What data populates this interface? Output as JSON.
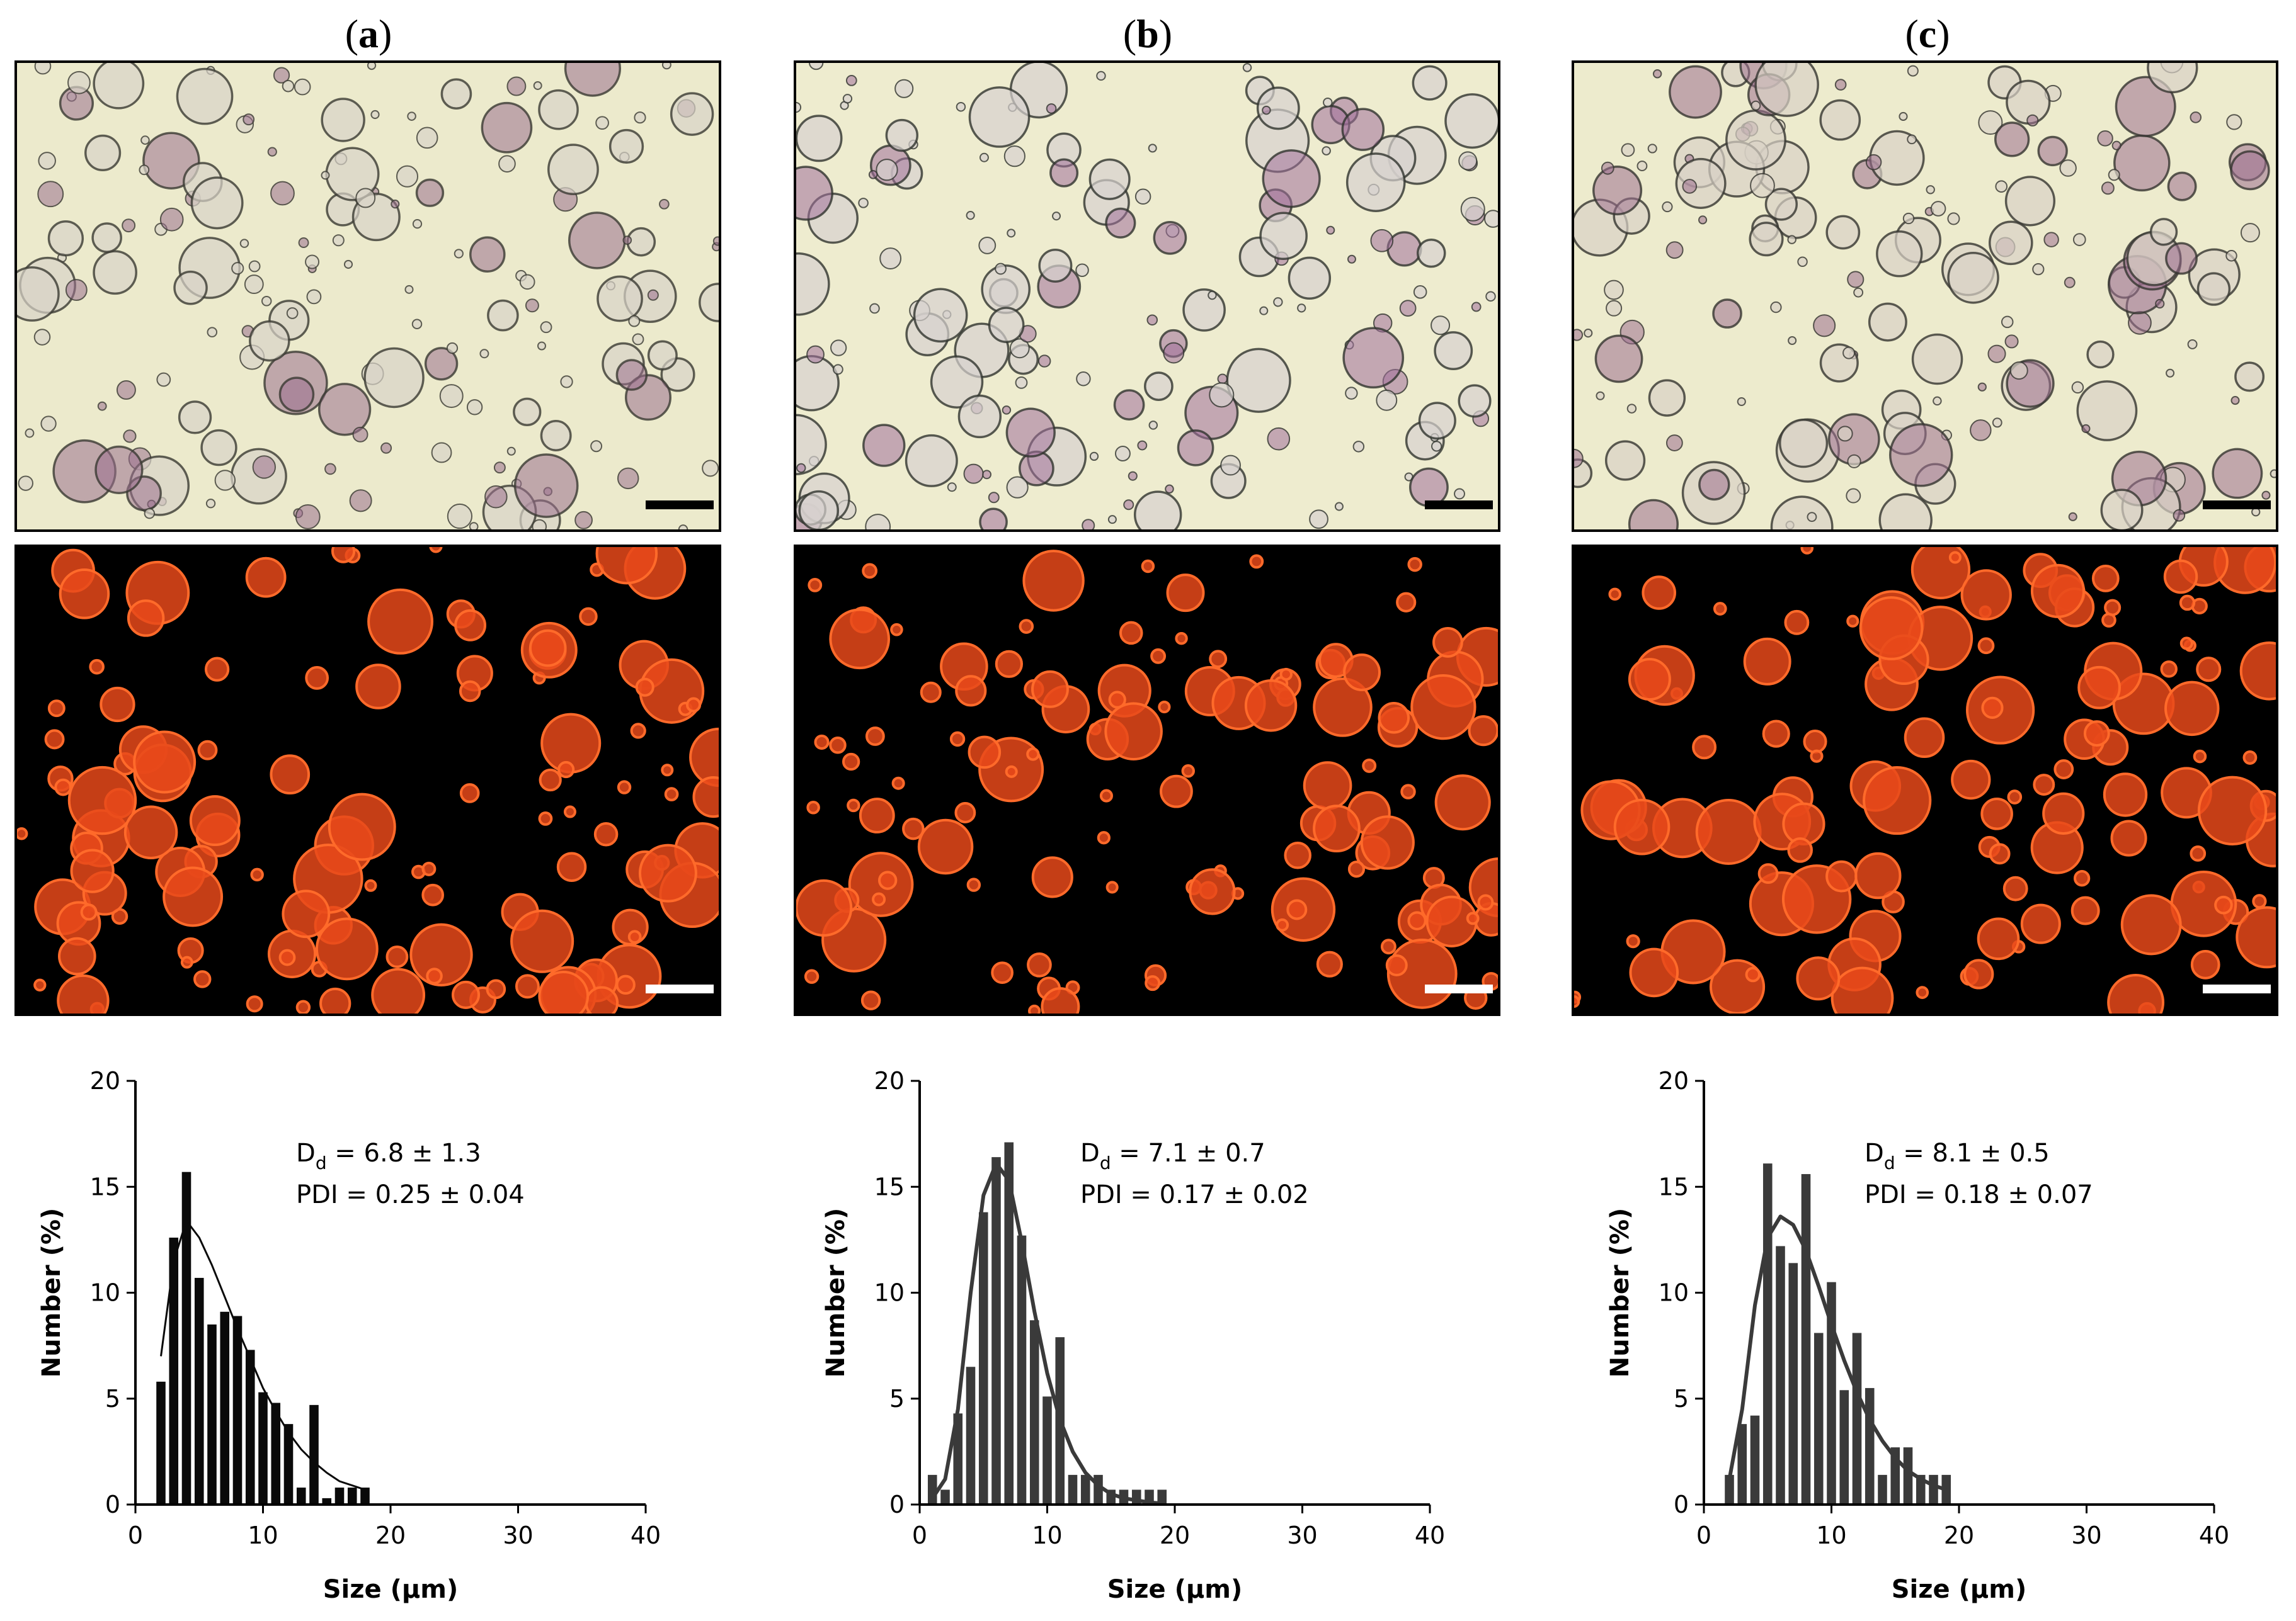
{
  "panels": [
    {
      "label_letter": "a",
      "micro_bright_colors": {
        "bg": "#eceacc",
        "ring": "#3a3a32",
        "fill": "#d9d3c7",
        "accent": "#9a6f8e"
      },
      "micro_fluor_colors": {
        "bg": "#000000",
        "ring": "#ff6a2a",
        "fill": "#e8491a"
      },
      "bar_color": "#0a0a0a"
    },
    {
      "label_letter": "b",
      "micro_bright_colors": {
        "bg": "#eeeccf",
        "ring": "#2f332d",
        "fill": "#d7d1cf",
        "accent": "#a1709a"
      },
      "micro_fluor_colors": {
        "bg": "#000000",
        "ring": "#ff6a2a",
        "fill": "#e8491a"
      },
      "bar_color": "#3a3a3a"
    },
    {
      "label_letter": "c",
      "micro_bright_colors": {
        "bg": "#edebcd",
        "ring": "#35352f",
        "fill": "#d8d2c6",
        "accent": "#9c7090"
      },
      "micro_fluor_colors": {
        "bg": "#000000",
        "ring": "#ff6a2a",
        "fill": "#e8491a"
      },
      "bar_color": "#3a3a3a"
    }
  ],
  "chart_data": [
    {
      "type": "bar",
      "panel": "a",
      "bins_x": [
        2,
        3,
        4,
        5,
        6,
        7,
        8,
        9,
        10,
        11,
        12,
        13,
        14,
        15,
        16,
        17,
        18
      ],
      "values": [
        5.8,
        12.6,
        15.7,
        10.7,
        8.5,
        9.1,
        8.9,
        7.3,
        5.3,
        4.8,
        3.8,
        0.8,
        4.7,
        0.3,
        0.8,
        0.8,
        0.8
      ],
      "fit_line": {
        "x": [
          2,
          3,
          4,
          5,
          6,
          7,
          8,
          9,
          10,
          11,
          12,
          13,
          14,
          15,
          16,
          17,
          18
        ],
        "y": [
          7.0,
          11.5,
          13.4,
          12.6,
          11.3,
          9.8,
          8.3,
          6.9,
          5.5,
          4.4,
          3.4,
          2.6,
          2.0,
          1.5,
          1.1,
          0.9,
          0.7
        ]
      },
      "xlim": [
        0,
        40
      ],
      "ylim": [
        0,
        20
      ],
      "xticks": [
        0,
        10,
        20,
        30,
        40
      ],
      "yticks": [
        0,
        5,
        10,
        15,
        20
      ],
      "xlabel": "Size (µm)",
      "ylabel": "Number (%)",
      "annotation": {
        "dd_prefix": "D",
        "dd_sub": "d",
        "dd_value": " = 6.8 ± 1.3",
        "pdi": "PDI = 0.25 ± 0.04"
      }
    },
    {
      "type": "bar",
      "panel": "b",
      "bins_x": [
        1,
        2,
        3,
        4,
        5,
        6,
        7,
        8,
        9,
        10,
        11,
        12,
        13,
        14,
        15,
        16,
        17,
        18,
        19
      ],
      "values": [
        1.4,
        0.7,
        4.3,
        6.5,
        13.8,
        16.4,
        17.1,
        12.7,
        8.7,
        5.1,
        7.9,
        1.4,
        1.4,
        1.4,
        0.7,
        0.7,
        0.7,
        0.7,
        0.7
      ],
      "fit_line": {
        "x": [
          1,
          2,
          3,
          4,
          5,
          6,
          7,
          8,
          9,
          10,
          11,
          12,
          13,
          14,
          15,
          16,
          17,
          18,
          19
        ],
        "y": [
          0.3,
          1.2,
          4.5,
          10.0,
          14.6,
          16.1,
          15.3,
          12.4,
          9.1,
          6.2,
          4.0,
          2.5,
          1.5,
          0.9,
          0.5,
          0.3,
          0.2,
          0.1,
          0.05
        ]
      },
      "xlim": [
        0,
        40
      ],
      "ylim": [
        0,
        20
      ],
      "xticks": [
        0,
        10,
        20,
        30,
        40
      ],
      "yticks": [
        0,
        5,
        10,
        15,
        20
      ],
      "xlabel": "Size (µm)",
      "ylabel": "Number (%)",
      "annotation": {
        "dd_prefix": "D",
        "dd_sub": "d",
        "dd_value": " = 7.1 ± 0.7",
        "pdi": "PDI = 0.17 ± 0.02"
      }
    },
    {
      "type": "bar",
      "panel": "c",
      "bins_x": [
        2,
        3,
        4,
        5,
        6,
        7,
        8,
        9,
        10,
        11,
        12,
        13,
        14,
        15,
        16,
        17,
        18,
        19
      ],
      "values": [
        1.4,
        3.8,
        4.2,
        16.1,
        12.2,
        11.4,
        15.6,
        8.1,
        10.5,
        5.4,
        8.1,
        5.5,
        1.4,
        2.7,
        2.7,
        1.4,
        1.4,
        1.4
      ],
      "fit_line": {
        "x": [
          2,
          3,
          4,
          5,
          6,
          7,
          8,
          9,
          10,
          11,
          12,
          13,
          14,
          15,
          16,
          17,
          18,
          19
        ],
        "y": [
          1.2,
          4.5,
          9.4,
          12.6,
          13.6,
          13.2,
          12.0,
          10.3,
          8.5,
          6.8,
          5.3,
          4.0,
          3.0,
          2.2,
          1.6,
          1.2,
          0.9,
          0.7
        ]
      },
      "xlim": [
        0,
        40
      ],
      "ylim": [
        0,
        20
      ],
      "xticks": [
        0,
        10,
        20,
        30,
        40
      ],
      "yticks": [
        0,
        5,
        10,
        15,
        20
      ],
      "xlabel": "Size (µm)",
      "ylabel": "Number (%)",
      "annotation": {
        "dd_prefix": "D",
        "dd_sub": "d",
        "dd_value": " = 8.1 ± 0.5",
        "pdi": "PDI = 0.18 ± 0.07"
      }
    }
  ]
}
